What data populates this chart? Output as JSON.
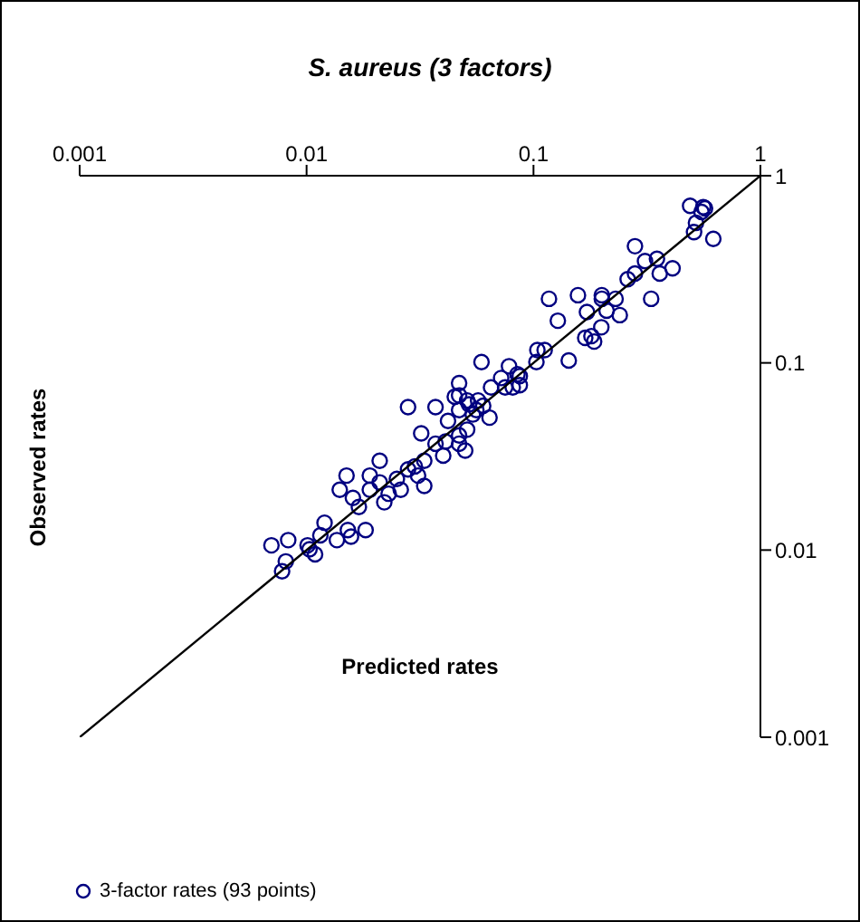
{
  "chart_data": {
    "type": "scatter",
    "title": "S. aureus (3 factors)",
    "xlabel": "Predicted rates",
    "ylabel": "Observed rates",
    "log": "xy",
    "grid": false,
    "legend": "bottom",
    "xlim": [
      0.001,
      1
    ],
    "ylim": [
      0.001,
      1
    ],
    "xticks": [
      0.001,
      0.01,
      0.1,
      1
    ],
    "yticks": [
      0.001,
      0.01,
      0.1,
      1
    ],
    "series": [
      {
        "name": "3-factor rates (93 points)",
        "type": "scatter",
        "marker": "circle",
        "color": "#000080",
        "x": [
          0.49,
          0.56,
          0.55,
          0.52,
          0.51,
          0.62,
          0.28,
          0.35,
          0.36,
          0.41,
          0.28,
          0.2,
          0.2,
          0.23,
          0.33,
          0.117,
          0.172,
          0.21,
          0.24,
          0.128,
          0.199,
          0.169,
          0.18,
          0.185,
          0.104,
          0.103,
          0.143,
          0.087,
          0.087,
          0.081,
          0.028,
          0.037,
          0.045,
          0.051,
          0.057,
          0.064,
          0.054,
          0.047,
          0.042,
          0.051,
          0.047,
          0.047,
          0.05,
          0.032,
          0.021,
          0.015,
          0.019,
          0.021,
          0.025,
          0.028,
          0.033,
          0.031,
          0.033,
          0.026,
          0.022,
          0.019,
          0.014,
          0.016,
          0.0083,
          0.007,
          0.0101,
          0.0109,
          0.0115,
          0.0136,
          0.0152,
          0.0157,
          0.0182,
          0.0081,
          0.0078,
          0.0103,
          0.059,
          0.047,
          0.047,
          0.052,
          0.065,
          0.072,
          0.085,
          0.075,
          0.037,
          0.041,
          0.056,
          0.06,
          0.078,
          0.112,
          0.157,
          0.26,
          0.31,
          0.57,
          0.012,
          0.017,
          0.023,
          0.03,
          0.04
        ],
        "values": [
          0.69,
          0.68,
          0.64,
          0.56,
          0.5,
          0.46,
          0.42,
          0.36,
          0.3,
          0.32,
          0.3,
          0.23,
          0.22,
          0.22,
          0.22,
          0.22,
          0.187,
          0.19,
          0.18,
          0.168,
          0.155,
          0.136,
          0.139,
          0.13,
          0.117,
          0.101,
          0.103,
          0.085,
          0.076,
          0.074,
          0.058,
          0.058,
          0.066,
          0.063,
          0.063,
          0.051,
          0.053,
          0.056,
          0.049,
          0.044,
          0.041,
          0.037,
          0.034,
          0.042,
          0.03,
          0.025,
          0.025,
          0.023,
          0.024,
          0.027,
          0.03,
          0.025,
          0.022,
          0.021,
          0.018,
          0.021,
          0.021,
          0.019,
          0.0113,
          0.0106,
          0.0106,
          0.0095,
          0.012,
          0.0113,
          0.0128,
          0.0118,
          0.0128,
          0.0087,
          0.0077,
          0.0101,
          0.101,
          0.078,
          0.067,
          0.06,
          0.074,
          0.083,
          0.087,
          0.074,
          0.037,
          0.038,
          0.056,
          0.059,
          0.096,
          0.117,
          0.23,
          0.28,
          0.35,
          0.67,
          0.014,
          0.017,
          0.02,
          0.028,
          0.032
        ]
      },
      {
        "type": "line",
        "marker": "none",
        "color": "#000000",
        "x": [
          0.001,
          1
        ],
        "values": [
          0.001,
          1
        ]
      }
    ]
  }
}
